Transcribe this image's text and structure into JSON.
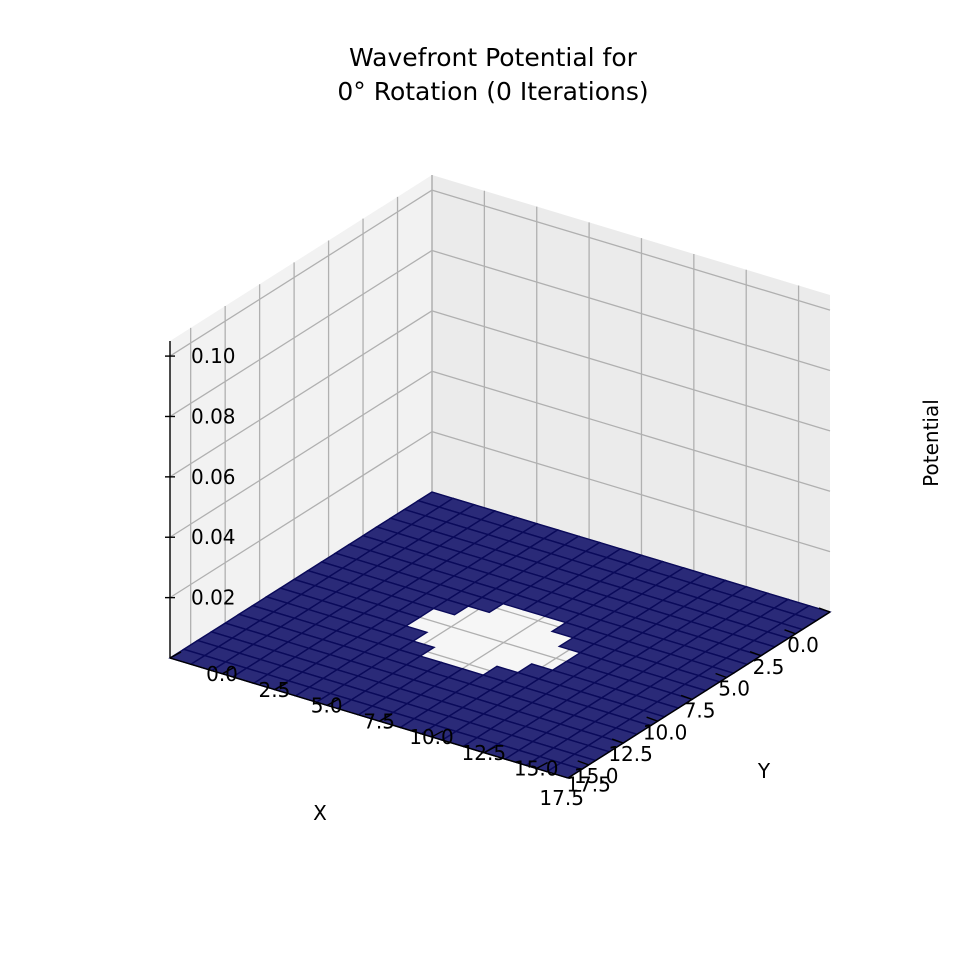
{
  "chart_data": {
    "type": "surface3d",
    "title_line1": "Wavefront Potential for",
    "title_line2": "0° Rotation (0 Iterations)",
    "xlabel": "X",
    "ylabel": "Y",
    "zlabel": "Potential",
    "x_ticks": [
      "0.0",
      "2.5",
      "5.0",
      "7.5",
      "10.0",
      "12.5",
      "15.0",
      "17.5"
    ],
    "y_ticks": [
      "0.0",
      "2.5",
      "5.0",
      "7.5",
      "10.0",
      "12.5",
      "15.0",
      "17.5"
    ],
    "z_ticks": [
      "0.02",
      "0.04",
      "0.06",
      "0.08",
      "0.10"
    ],
    "xlim": [
      0,
      19
    ],
    "ylim": [
      0,
      19
    ],
    "zlim": [
      0,
      0.105
    ],
    "grid_size": 20,
    "surface_value": 0,
    "obstacle": {
      "shape": "octagon",
      "center_x": 10,
      "center_y": 9.5,
      "radius": 3
    },
    "grid": true,
    "colors": {
      "surface_fill": "#2a2a78",
      "surface_edge": "#0a0a5a",
      "pane_left": "#f2f2f2",
      "pane_back": "#ebebeb",
      "pane_floor": "#f6f6f6",
      "gridline": "#b0b0b0"
    }
  }
}
